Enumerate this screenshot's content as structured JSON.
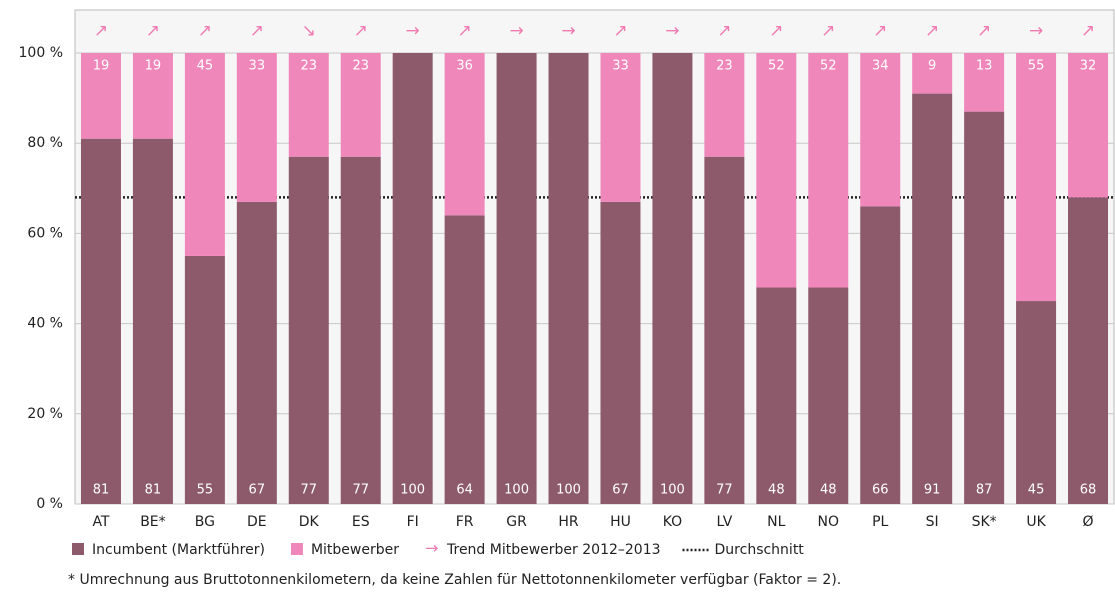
{
  "chart_data": {
    "type": "stacked_bar",
    "categories": [
      "AT",
      "BE*",
      "BG",
      "DE",
      "DK",
      "ES",
      "FI",
      "FR",
      "GR",
      "HR",
      "HU",
      "KO",
      "LV",
      "NL",
      "NO",
      "PL",
      "SI",
      "SK*",
      "UK",
      "Ø"
    ],
    "series": [
      {
        "name": "Incumbent (Marktführer)",
        "color": "#8c5a6b",
        "values": [
          81,
          81,
          55,
          67,
          77,
          77,
          100,
          64,
          100,
          100,
          67,
          100,
          77,
          48,
          48,
          66,
          91,
          87,
          45,
          68
        ]
      },
      {
        "name": "Mitbewerber",
        "color": "#f087bb",
        "values": [
          19,
          19,
          45,
          33,
          23,
          23,
          null,
          36,
          null,
          null,
          33,
          null,
          23,
          52,
          52,
          34,
          9,
          13,
          55,
          32
        ]
      }
    ],
    "trends": [
      "↗",
      "↗",
      "↗",
      "↗",
      "↘",
      "↗",
      "→",
      "↗",
      "→",
      "→",
      "↗",
      "→",
      "↗",
      "↗",
      "↗",
      "↗",
      "↗",
      "↗",
      "→",
      "↗"
    ],
    "trend_color": "#f07ab2",
    "trend_legend": {
      "symbol": "→",
      "name": "Trend Mitbewerber 2012–2013"
    },
    "average": 68,
    "average_name": "Durchschnitt",
    "ylim": [
      0,
      100
    ],
    "yticks": [
      {
        "value": 0,
        "label": "0 %"
      },
      {
        "value": 20,
        "label": "20 %"
      },
      {
        "value": 40,
        "label": "40 %"
      },
      {
        "value": 60,
        "label": "60 %"
      },
      {
        "value": 80,
        "label": "80 %"
      },
      {
        "value": 100,
        "label": "100 %"
      }
    ],
    "grid": true,
    "footnote": "* Umrechnung aus Bruttotonnenkilometern, da keine Zahlen für Nettotonnenkilometer verfügbar (Faktor = 2)."
  }
}
